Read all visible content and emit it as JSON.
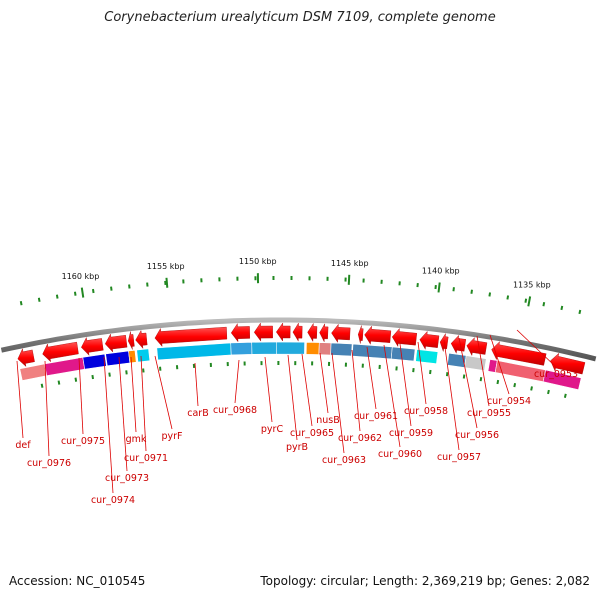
{
  "title": "Corynebacterium urealyticum DSM 7109, complete genome",
  "footer": {
    "accession": "Accession: NC_010545",
    "summary": "Topology: circular; Length: 2,369,219 bp; Genes: 2,082"
  },
  "scale_labels": [
    "1160 kbp",
    "1155 kbp",
    "1150 kbp",
    "1145 kbp",
    "1140 kbp",
    "1135 kbp"
  ],
  "gene_labels": [
    "def",
    "cur_0976",
    "cur_0975",
    "cur_0974",
    "cur_0973",
    "gmk",
    "cur_0971",
    "pyrF",
    "carB",
    "cur_0968",
    "pyrC",
    "pyrB",
    "cur_0965",
    "nusB",
    "cur_0963",
    "cur_0962",
    "cur_0961",
    "cur_0960",
    "cur_0959",
    "cur_0958",
    "cur_0957",
    "cur_0956",
    "cur_0955",
    "cur_0954",
    "cur_0953"
  ],
  "colors": {
    "backbone": "#808080",
    "forward_strand": "#ee1111",
    "label_line": "#dd0000",
    "tick": "#228822"
  }
}
